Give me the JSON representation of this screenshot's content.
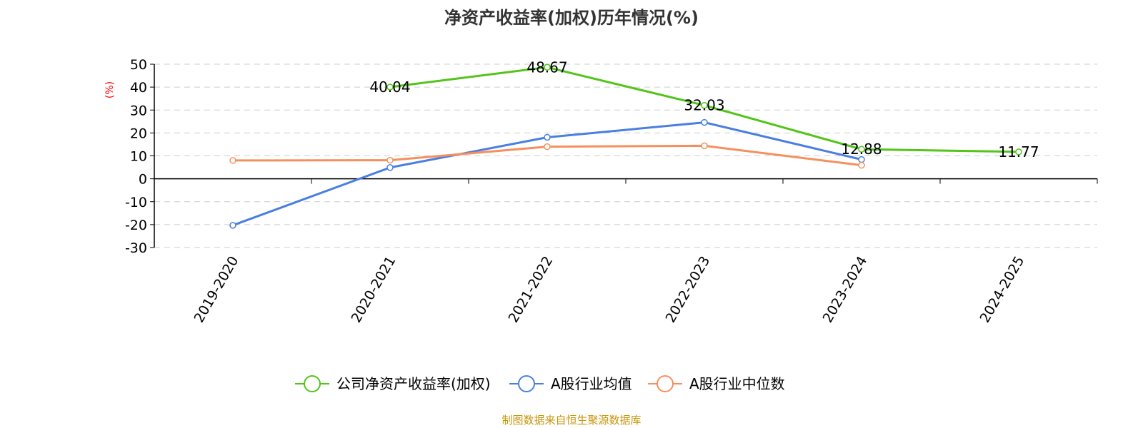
{
  "chart_data": {
    "type": "line",
    "title": "净资产收益率(加权)历年情况(%)",
    "ylabel": "(%)",
    "xlabel": "",
    "categories": [
      "2019-2020",
      "2020-2021",
      "2021-2022",
      "2022-2023",
      "2023-2024",
      "2024-2025"
    ],
    "ylim": [
      -30,
      50
    ],
    "yticks": [
      50,
      40,
      30,
      20,
      10,
      0,
      -10,
      -20,
      -30
    ],
    "grid": true,
    "legend_position": "bottom",
    "series": [
      {
        "name": "公司净资产收益率(加权)",
        "color": "#52c41a",
        "values": [
          null,
          40.04,
          48.67,
          32.03,
          12.88,
          11.77
        ],
        "labels": [
          "",
          "40.04",
          "48.67",
          "32.03",
          "12.88",
          "11.77"
        ]
      },
      {
        "name": "A股行业均值",
        "color": "#4a7fe0",
        "values": [
          -20.3,
          4.9,
          18.1,
          24.6,
          8.4,
          null
        ]
      },
      {
        "name": "A股行业中位数",
        "color": "#f5905e",
        "values": [
          8.0,
          8.1,
          14.0,
          14.4,
          5.9,
          null
        ]
      }
    ]
  },
  "source_text": "制图数据来自恒生聚源数据库",
  "source_color": "#c8960c",
  "axis_color": "#000000",
  "grid_color": "#cccccc"
}
